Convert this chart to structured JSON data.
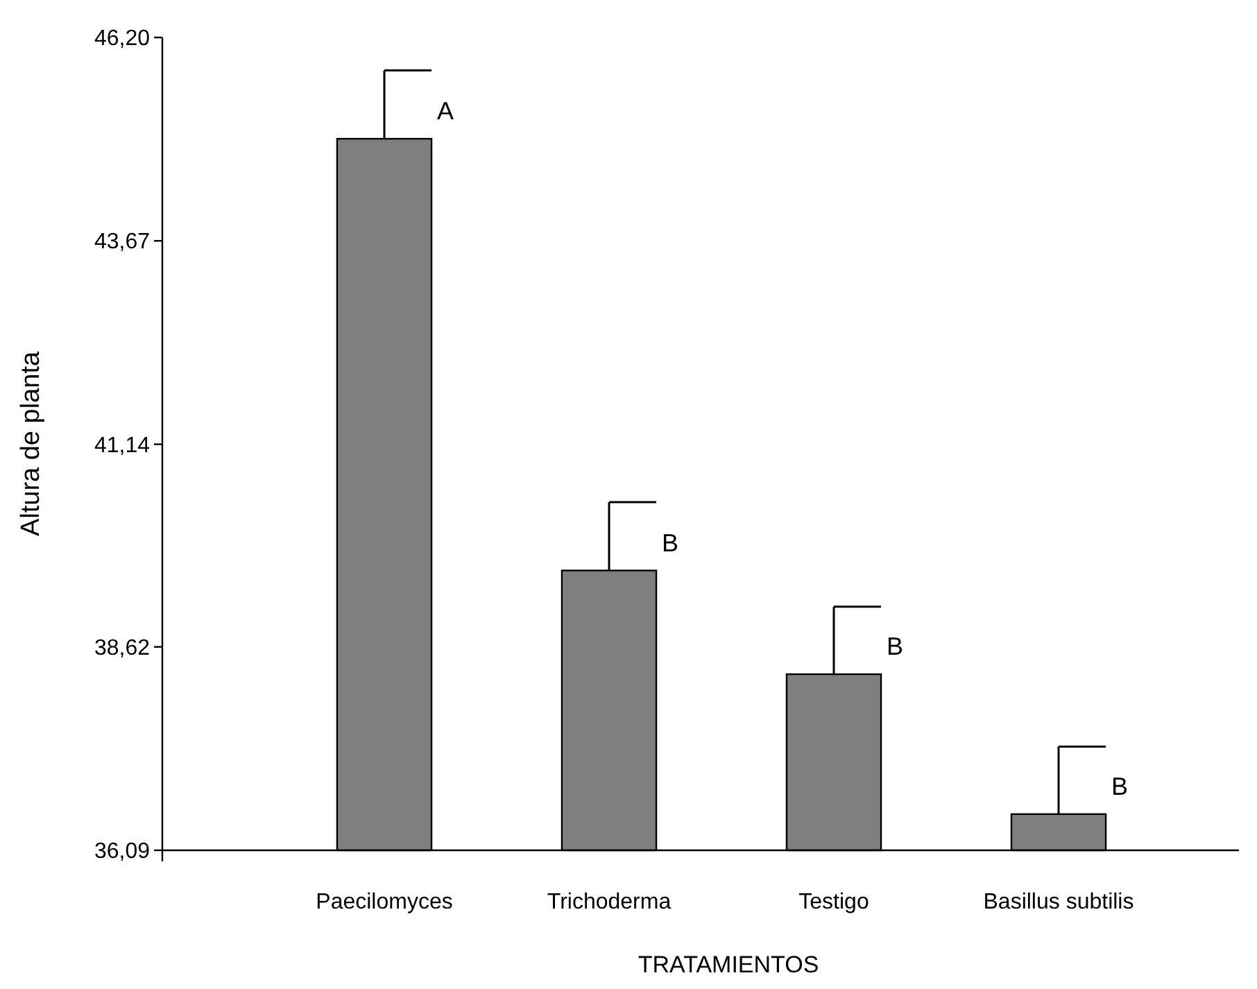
{
  "chart_data": {
    "type": "bar",
    "xlabel": "TRATAMIENTOS",
    "ylabel": "Altura de planta",
    "categories": [
      "Paecilomyces",
      "Trichoderma",
      "Testigo",
      "Basillus subtilis"
    ],
    "values": [
      44.94,
      39.57,
      38.28,
      36.54
    ],
    "errors": [
      0.85,
      0.85,
      0.84,
      0.84
    ],
    "color": "#7f7f7f",
    "ylim": [
      36.09,
      46.2
    ],
    "yticks": [
      {
        "value": 36.09,
        "label": "36,09"
      },
      {
        "value": 38.62,
        "label": "38,62"
      },
      {
        "value": 41.14,
        "label": "41,14"
      },
      {
        "value": 43.67,
        "label": "43,67"
      },
      {
        "value": 46.2,
        "label": "46,20"
      }
    ],
    "grid": false,
    "annotations": [
      {
        "text": "A",
        "x": "Paecilomyces",
        "y": 44.94
      },
      {
        "text": "B",
        "x": "Trichoderma",
        "y": 39.57
      },
      {
        "text": "B",
        "x": "Testigo",
        "y": 38.28
      },
      {
        "text": "B",
        "x": "Basillus subtilis",
        "y": 36.54
      }
    ]
  }
}
